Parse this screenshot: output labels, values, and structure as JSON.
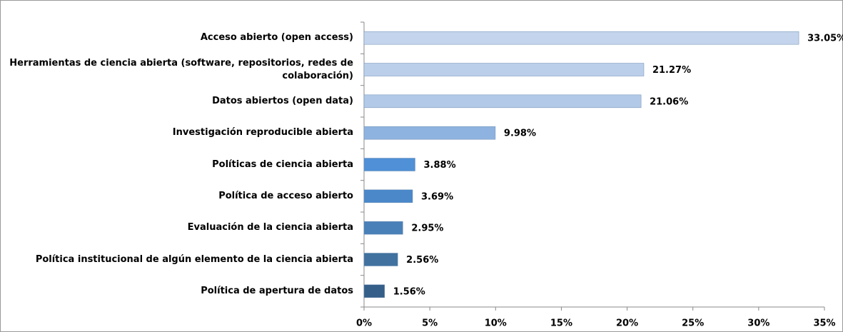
{
  "chart_data": {
    "type": "bar",
    "orientation": "horizontal",
    "categories": [
      "Acceso abierto (open access)",
      "Herramientas de ciencia abierta (software, repositorios, redes de colaboración)",
      "Datos abiertos (open data)",
      "Investigación reproducible abierta",
      "Políticas de ciencia abierta",
      "Política de acceso abierto",
      "Evaluación de la ciencia abierta",
      "Política institucional de algún elemento de la ciencia abierta",
      "Política de apertura de datos"
    ],
    "values": [
      33.05,
      21.27,
      21.06,
      9.98,
      3.88,
      3.69,
      2.95,
      2.56,
      1.56
    ],
    "value_labels": [
      "33.05%",
      "21.27%",
      "21.06%",
      "9.98%",
      "3.88%",
      "3.69%",
      "2.95%",
      "2.56%",
      "1.56%"
    ],
    "colors": [
      "#c3d4ec",
      "#bccfea",
      "#b2c9e7",
      "#8fb3e0",
      "#4f90d6",
      "#4a88c9",
      "#4a80b8",
      "#41729f",
      "#355f88"
    ],
    "xlim": [
      0,
      35
    ],
    "xticks": [
      {
        "value": 0,
        "label": "0%"
      },
      {
        "value": 5,
        "label": "5%"
      },
      {
        "value": 10,
        "label": "10%"
      },
      {
        "value": 15,
        "label": "15%"
      },
      {
        "value": 20,
        "label": "20%"
      },
      {
        "value": 25,
        "label": "25%"
      },
      {
        "value": 30,
        "label": "30%"
      },
      {
        "value": 35,
        "label": "35%"
      }
    ],
    "grid": false
  }
}
